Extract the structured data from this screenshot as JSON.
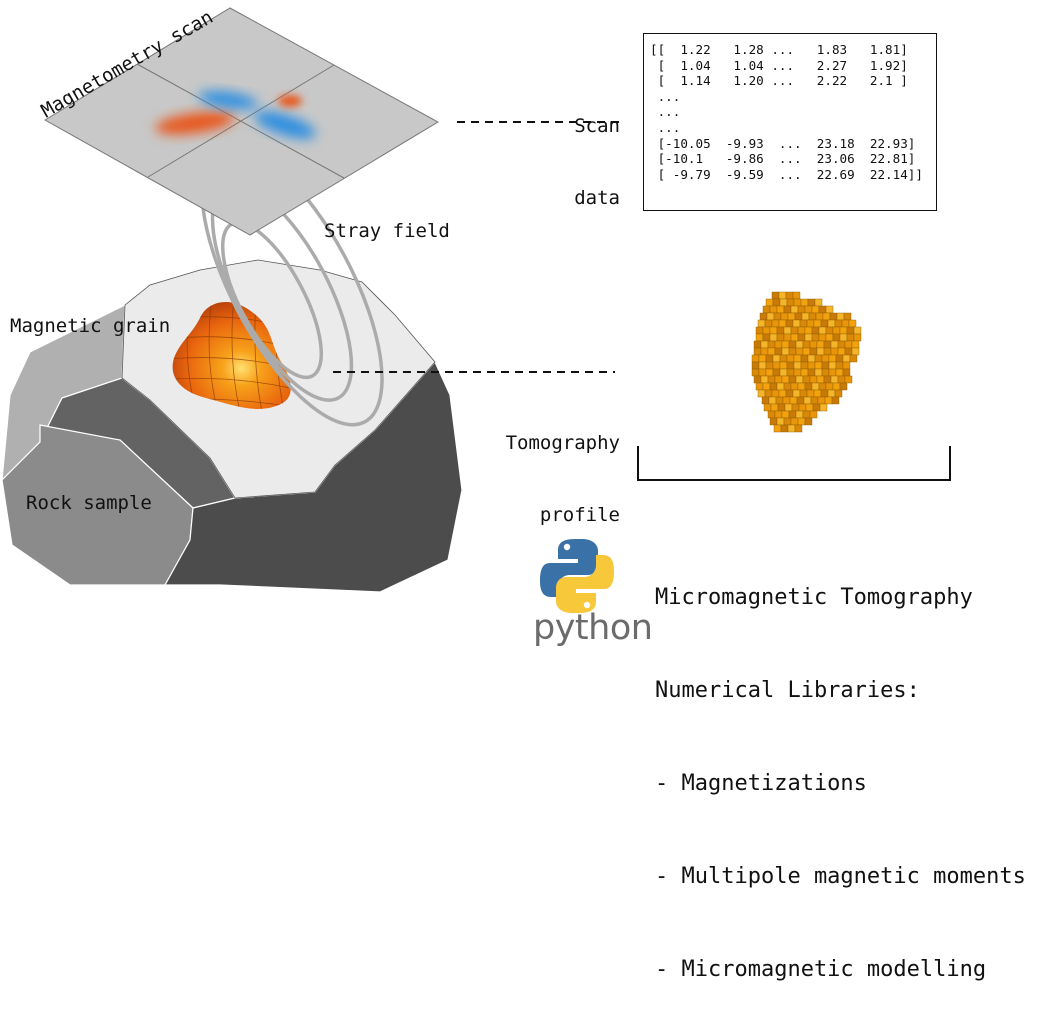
{
  "labels": {
    "magnetometry_scan": "Magnetometry scan",
    "scan_data_line1": "Scan",
    "scan_data_line2": "data",
    "stray_field": "Stray field",
    "magnetic_grain": "Magnetic grain",
    "rock_sample": "Rock sample",
    "tomography_line1": "Tomography",
    "tomography_line2": "profile"
  },
  "matrix": [
    "[[  1.22   1.28 ...   1.83   1.81]",
    " [  1.04   1.04 ...   2.27   1.92]",
    " [  1.14   1.20 ...   2.22   2.1 ]",
    " ...",
    " ...",
    " ...",
    " [-10.05  -9.93  ...  23.18  22.93]",
    " [-10.1   -9.86  ...  23.06  22.81]",
    " [ -9.79  -9.59  ...  22.69  22.14]]"
  ],
  "libraries": {
    "title_line1": "Micromagnetic Tomography",
    "title_line2": "Numerical Libraries:",
    "items": [
      "- Magnetizations",
      "- Multipole magnetic moments",
      "- Micromagnetic modelling"
    ]
  },
  "python_logo_text": "python",
  "colors": {
    "scan_plane": "#c8c8c8",
    "positive_lobe": "#e8561e",
    "negative_lobe": "#2f8fe0",
    "grain": "#f07a10",
    "voxel": "#f2a20c",
    "python_blue": "#3a72a8",
    "python_yellow": "#f7c83a"
  },
  "icons": [
    "python-logo-icon"
  ]
}
